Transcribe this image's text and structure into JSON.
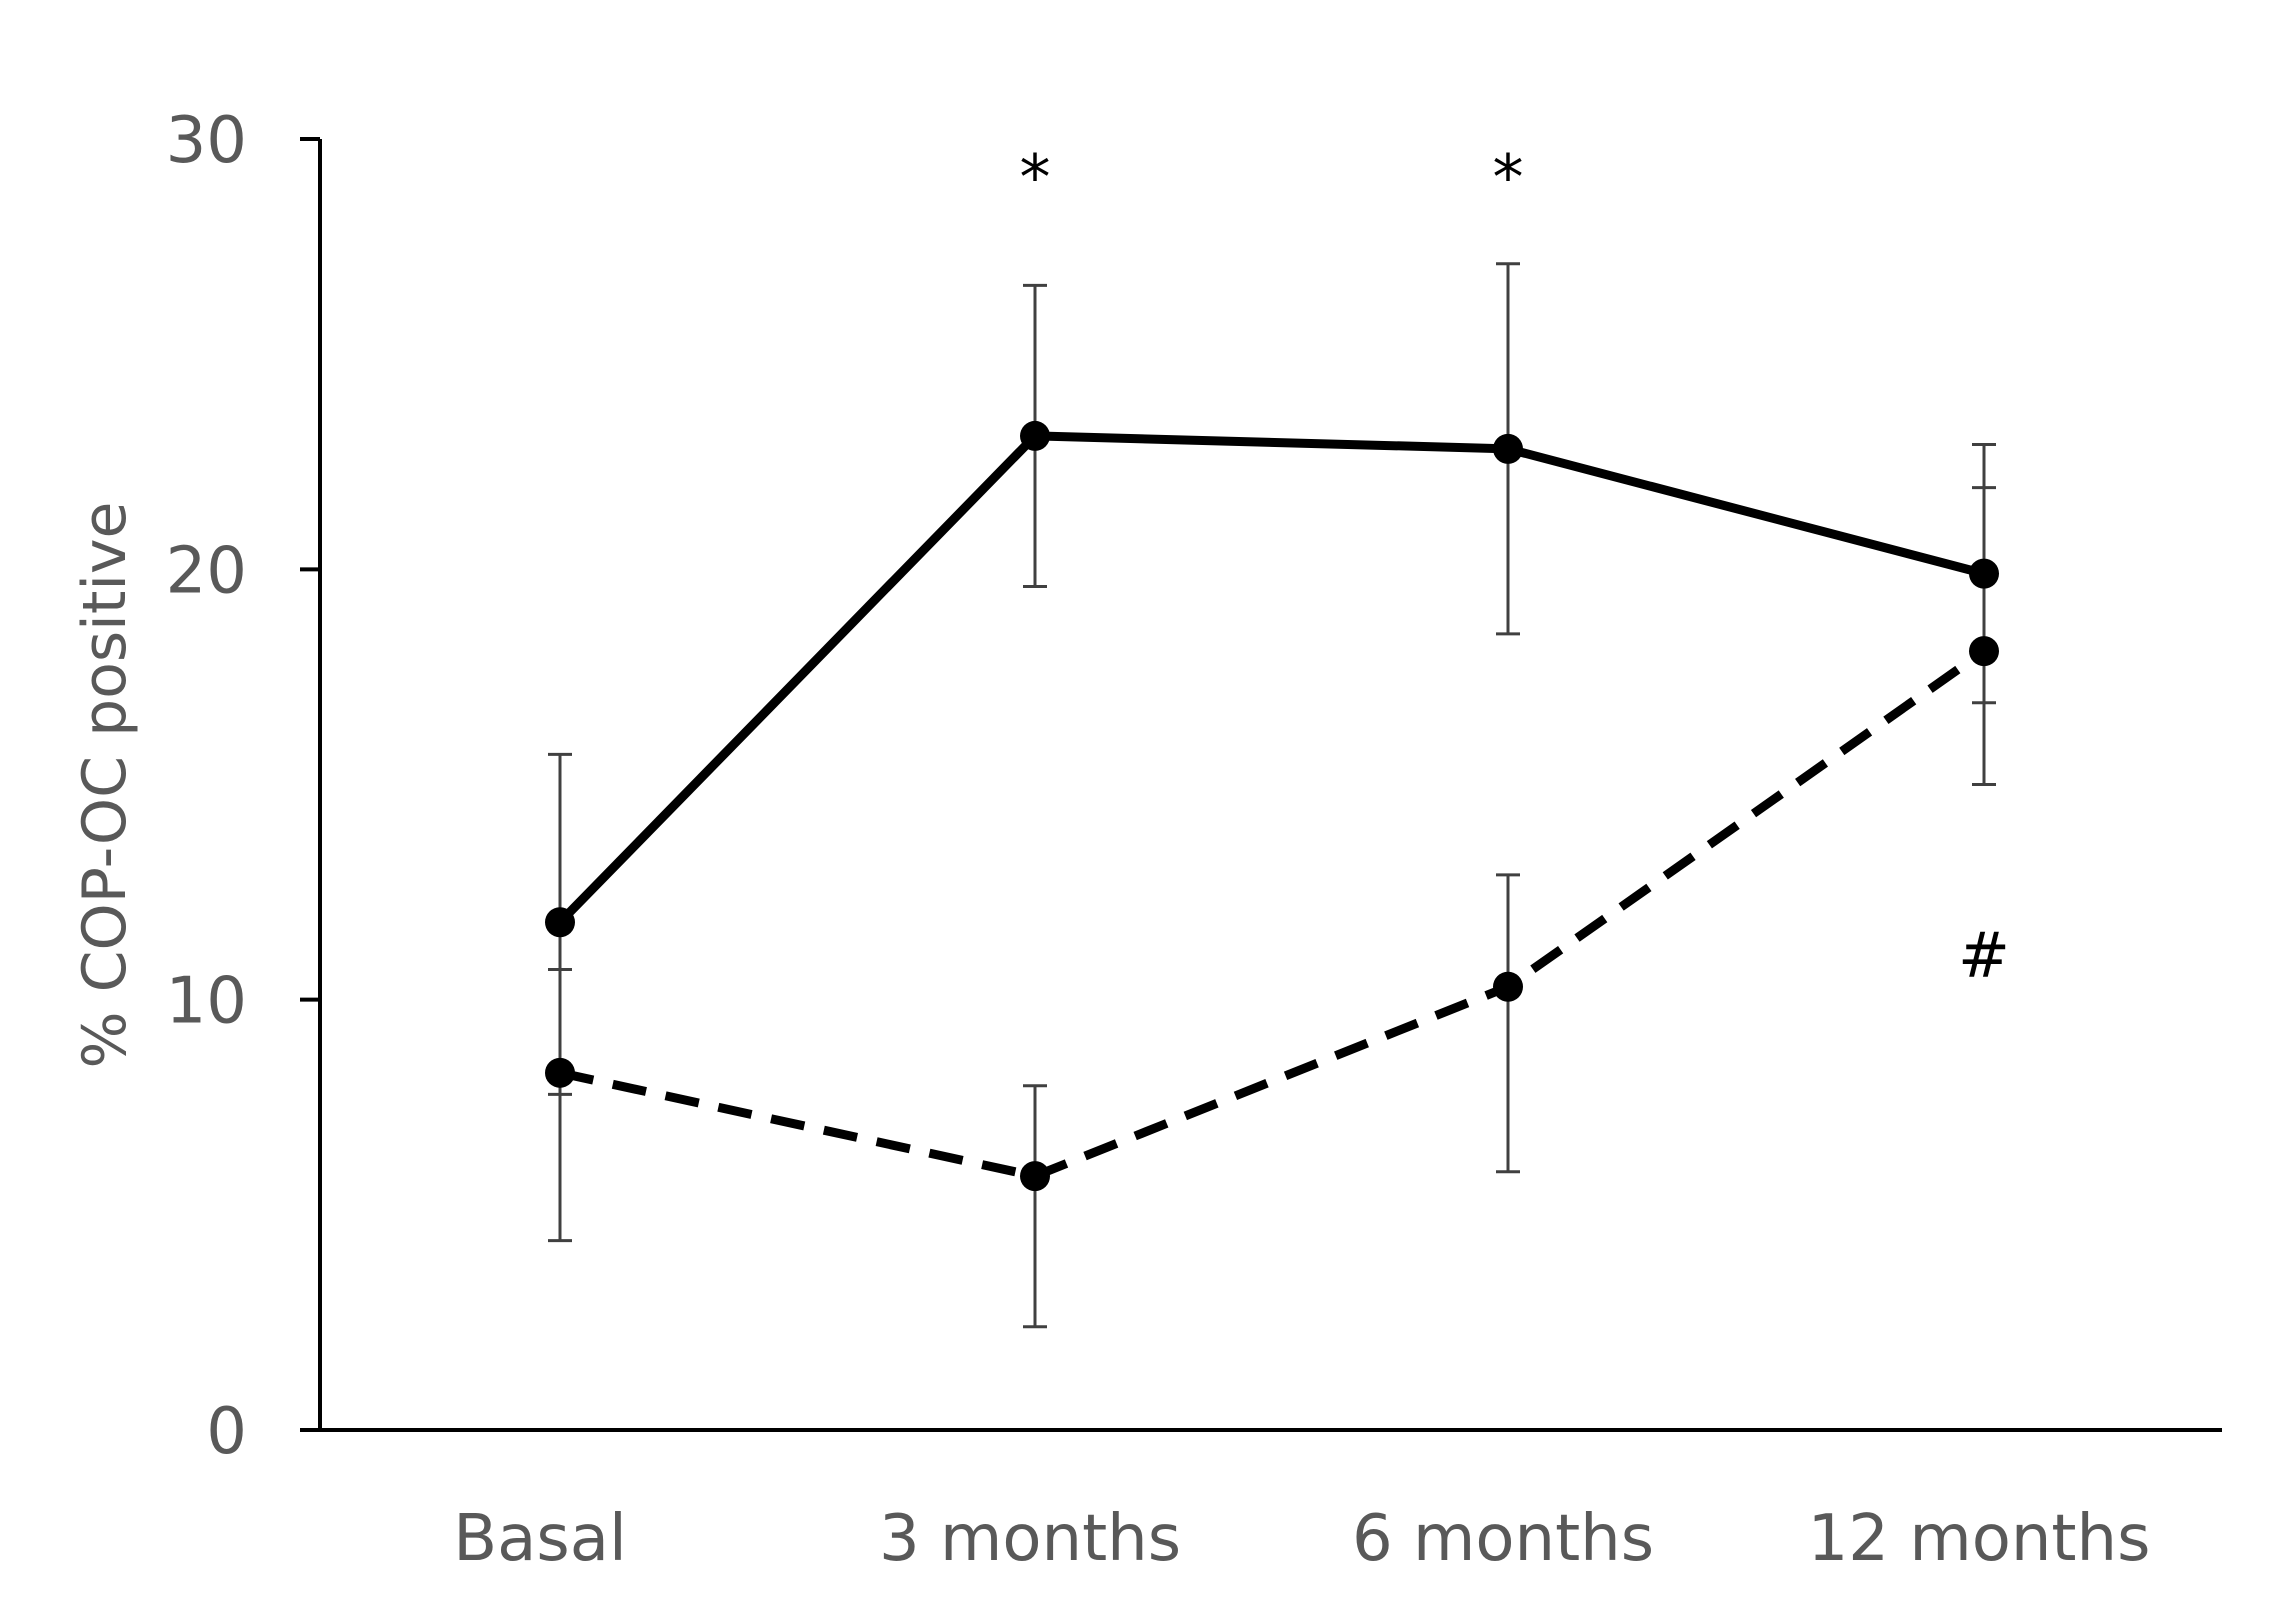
{
  "chart_data": {
    "type": "line",
    "categories": [
      "Basal",
      "3 months",
      "6 months",
      "12 months"
    ],
    "ylabel": "% COP-OC positive",
    "ylim": [
      0,
      30
    ],
    "yticks": [
      "0",
      "10",
      "20",
      "30"
    ],
    "grid": false,
    "legend": "none",
    "series": [
      {
        "style": "solid",
        "color": "#000000",
        "values": [
          11.8,
          23.1,
          22.8,
          19.9
        ],
        "err_low": [
          7.8,
          19.6,
          18.5,
          16.9
        ],
        "err_high": [
          15.7,
          26.6,
          27.1,
          22.9
        ]
      },
      {
        "style": "dashed",
        "color": "#000000",
        "values": [
          8.3,
          5.9,
          10.3,
          18.1
        ],
        "err_low": [
          4.4,
          2.4,
          6.0,
          15.0
        ],
        "err_high": [
          10.7,
          8.0,
          12.9,
          21.9
        ]
      }
    ],
    "annotations": [
      {
        "text": "*",
        "category": "3 months",
        "y": 30.0
      },
      {
        "text": "*",
        "category": "6 months",
        "y": 30.0
      },
      {
        "text": "#",
        "category": "12 months",
        "y": 11.0
      }
    ]
  }
}
